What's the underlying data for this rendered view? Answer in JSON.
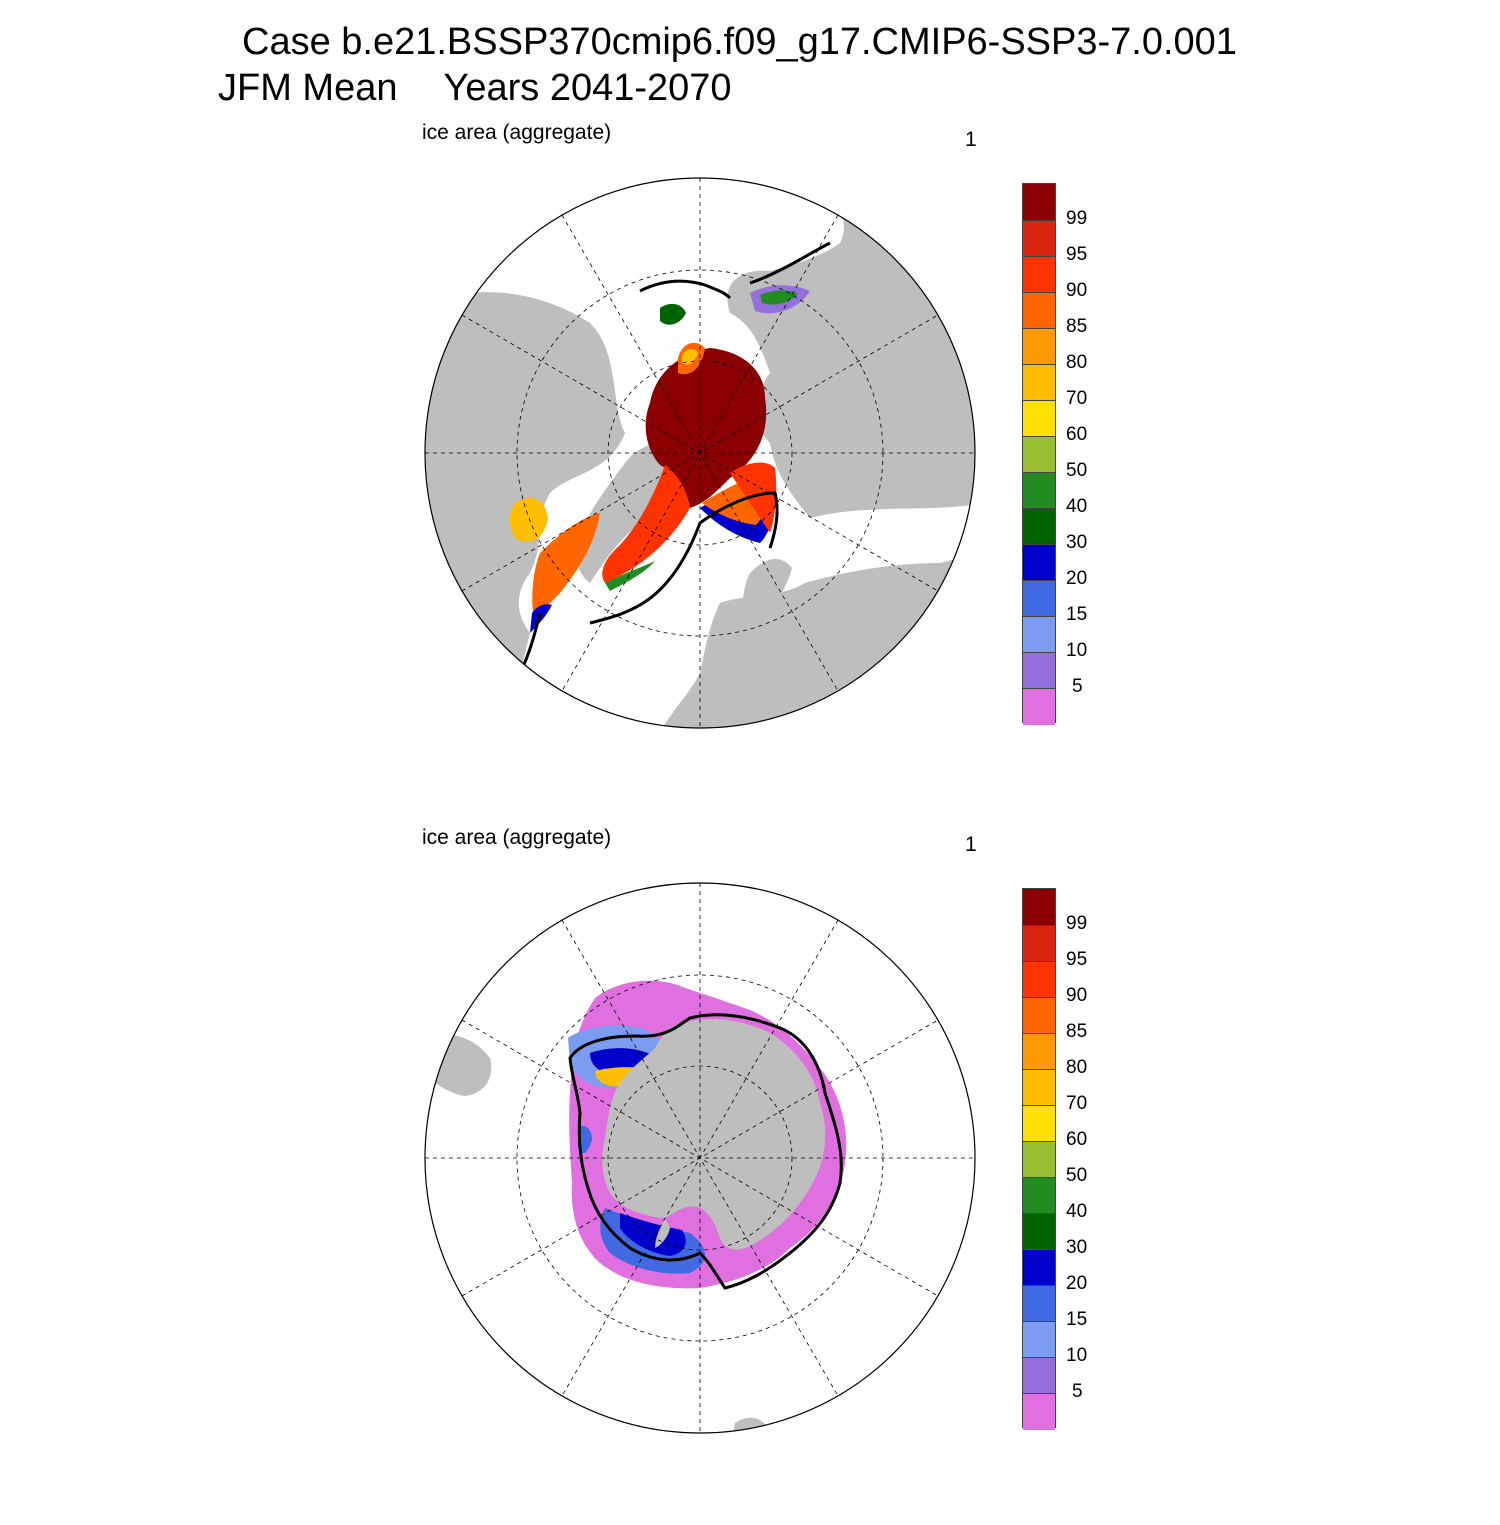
{
  "title": {
    "line1": "Case b.e21.BSSP370cmip6.f09_g17.CMIP6-SSP3-7.0.001",
    "line2_left": "JFM Mean",
    "line2_right": "Years 2041-2070"
  },
  "panels": [
    {
      "label": "ice area  (aggregate)",
      "corner_value": "1",
      "hemisphere": "north"
    },
    {
      "label": "ice area  (aggregate)",
      "corner_value": "1",
      "hemisphere": "south"
    }
  ],
  "colorbar": {
    "labels": [
      "99",
      "95",
      "90",
      "85",
      "80",
      "70",
      "60",
      "50",
      "40",
      "30",
      "20",
      "15",
      "10",
      "5"
    ],
    "colors": [
      "#8b0000",
      "#d8240c",
      "#ff3300",
      "#ff6600",
      "#ff9900",
      "#ffbf00",
      "#ffe000",
      "#99bf33",
      "#228b22",
      "#006400",
      "#0000cd",
      "#4169e1",
      "#7b9cf0",
      "#9370db",
      "#e070e0"
    ]
  },
  "colors": {
    "land": "#bebebe",
    "ocean": "#ffffff",
    "contour": "#000000"
  }
}
